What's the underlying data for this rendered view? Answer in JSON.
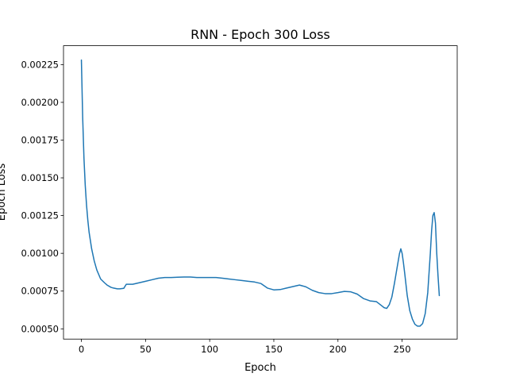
{
  "chart_data": {
    "type": "line",
    "title": "RNN - Epoch 300 Loss",
    "xlabel": "Epoch",
    "ylabel": "Epoch Loss",
    "xlim": [
      -13.95,
      292.95
    ],
    "ylim": [
      0.000432,
      0.002375
    ],
    "xticks": [
      0,
      50,
      100,
      150,
      200,
      250
    ],
    "xtick_labels": [
      "0",
      "50",
      "100",
      "150",
      "200",
      "250"
    ],
    "yticks": [
      0.0005,
      0.00075,
      0.001,
      0.00125,
      0.0015,
      0.00175,
      0.002,
      0.00225
    ],
    "ytick_labels": [
      "0.00050",
      "0.00075",
      "0.00100",
      "0.00125",
      "0.00150",
      "0.00175",
      "0.00200",
      "0.00225"
    ],
    "grid": false,
    "line_color": "#1f77b4",
    "series": [
      {
        "x": [
          0,
          1,
          2,
          3,
          4,
          5,
          6,
          8,
          10,
          12,
          15,
          18,
          20,
          23,
          25,
          28,
          30,
          33,
          35,
          38,
          40,
          45,
          50,
          55,
          60,
          65,
          70,
          75,
          80,
          85,
          90,
          95,
          100,
          105,
          110,
          115,
          120,
          125,
          130,
          135,
          140,
          145,
          150,
          155,
          160,
          165,
          170,
          175,
          180,
          185,
          190,
          195,
          200,
          205,
          210,
          215,
          220,
          225,
          230,
          233,
          236,
          238,
          240,
          242,
          244,
          246,
          248,
          249,
          250,
          251,
          252,
          254,
          256,
          258,
          260,
          262,
          264,
          266,
          268,
          270,
          272,
          273,
          274,
          275,
          276,
          277,
          278,
          279
        ],
        "y": [
          0.00228,
          0.0019,
          0.00163,
          0.00145,
          0.00132,
          0.00122,
          0.00114,
          0.00103,
          0.00095,
          0.00089,
          0.00083,
          0.000805,
          0.00079,
          0.000775,
          0.00077,
          0.000765,
          0.000765,
          0.000768,
          0.000795,
          0.000795,
          0.000795,
          0.000805,
          0.000815,
          0.000825,
          0.000835,
          0.00084,
          0.00084,
          0.000842,
          0.000843,
          0.000843,
          0.00084,
          0.00084,
          0.00084,
          0.00084,
          0.000835,
          0.00083,
          0.000825,
          0.00082,
          0.000815,
          0.00081,
          0.0008,
          0.00077,
          0.000758,
          0.00076,
          0.00077,
          0.00078,
          0.00079,
          0.000778,
          0.000755,
          0.00074,
          0.000733,
          0.000733,
          0.00074,
          0.000748,
          0.000745,
          0.00073,
          0.0007,
          0.000685,
          0.00068,
          0.00066,
          0.00064,
          0.000635,
          0.00066,
          0.00071,
          0.0008,
          0.0009,
          0.001,
          0.00103,
          0.001,
          0.00094,
          0.00087,
          0.00072,
          0.00062,
          0.000565,
          0.00053,
          0.000518,
          0.000518,
          0.000535,
          0.0006,
          0.00074,
          0.001,
          0.00115,
          0.00125,
          0.00127,
          0.0012,
          0.001,
          0.00085,
          0.00072
        ]
      }
    ]
  }
}
